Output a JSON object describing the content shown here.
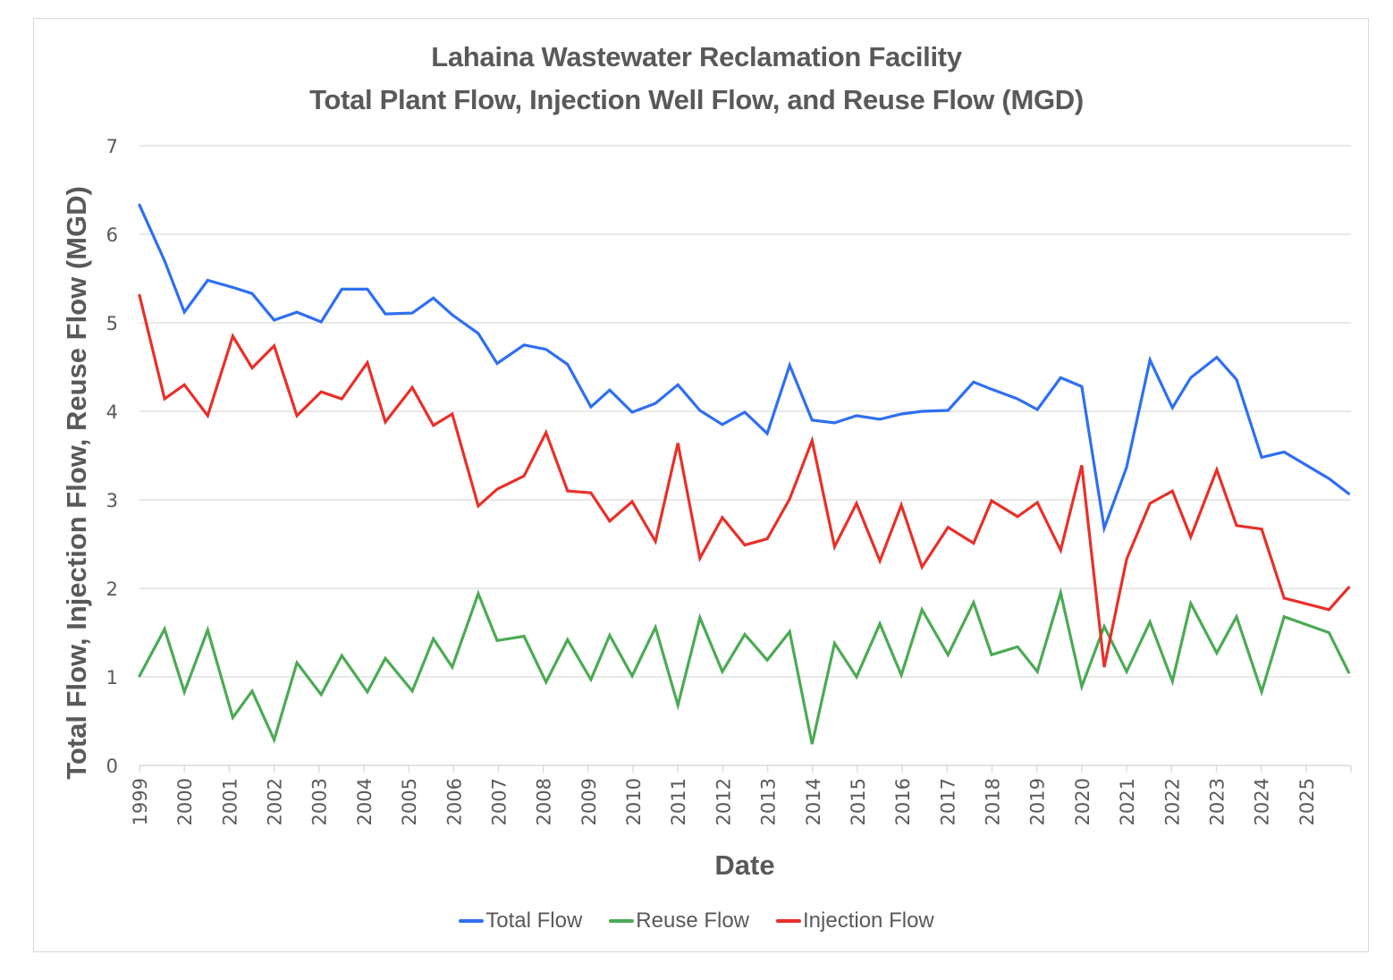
{
  "chart_data": {
    "type": "line",
    "title": [
      "Lahaina Wastewater Reclamation Facility",
      "Total Plant Flow, Injection Well Flow, and Reuse Flow (MGD)"
    ],
    "xlabel": "Date",
    "ylabel": "Total Flow, Injection Flow, Reuse Flow (MGD)",
    "xlim": [
      1999,
      2026
    ],
    "ylim": [
      0,
      7
    ],
    "x_ticks": [
      "1999",
      "2000",
      "2001",
      "2002",
      "2003",
      "2004",
      "2005",
      "2006",
      "2007",
      "2008",
      "2009",
      "2010",
      "2011",
      "2012",
      "2013",
      "2014",
      "2015",
      "2016",
      "2017",
      "2018",
      "2019",
      "2020",
      "2021",
      "2022",
      "2023",
      "2024",
      "2025"
    ],
    "y_ticks": [
      0,
      1,
      2,
      3,
      4,
      5,
      6,
      7
    ],
    "grid": "horizontal",
    "legend_position": "bottom",
    "x": [
      1999.0,
      1999.56,
      2000.0,
      2000.52,
      2001.08,
      2001.51,
      2002.0,
      2002.51,
      2003.05,
      2003.51,
      2004.08,
      2004.48,
      2005.08,
      2005.55,
      2005.97,
      2006.55,
      2006.97,
      2007.57,
      2008.06,
      2008.54,
      2009.06,
      2009.48,
      2009.98,
      2010.5,
      2011.0,
      2011.49,
      2011.99,
      2012.49,
      2012.99,
      2013.49,
      2013.99,
      2014.49,
      2014.98,
      2015.5,
      2015.98,
      2016.44,
      2017.02,
      2017.59,
      2017.99,
      2018.57,
      2019.01,
      2019.53,
      2020.0,
      2020.5,
      2021.0,
      2021.52,
      2022.02,
      2022.43,
      2023.01,
      2023.45,
      2024.01,
      2024.51,
      2025.51,
      2025.95
    ],
    "series": [
      {
        "name": "Total Flow",
        "color": "#2f6ff0",
        "values": [
          6.33,
          5.7,
          5.12,
          5.48,
          5.4,
          5.33,
          5.03,
          5.12,
          5.01,
          5.38,
          5.38,
          5.1,
          5.11,
          5.28,
          5.09,
          4.88,
          4.54,
          4.75,
          4.7,
          4.53,
          4.05,
          4.24,
          3.99,
          4.09,
          4.3,
          4.01,
          3.85,
          3.99,
          3.75,
          4.52,
          3.9,
          3.87,
          3.95,
          3.91,
          3.97,
          4.0,
          4.01,
          4.33,
          4.25,
          4.14,
          4.02,
          4.38,
          4.28,
          2.68,
          3.37,
          4.58,
          4.04,
          4.38,
          4.61,
          4.36,
          3.48,
          3.54,
          3.24,
          3.07
        ]
      },
      {
        "name": "Reuse Flow",
        "color": "#4caa55",
        "values": [
          1.01,
          1.54,
          0.83,
          1.53,
          0.54,
          0.84,
          0.29,
          1.16,
          0.8,
          1.24,
          0.83,
          1.21,
          0.84,
          1.43,
          1.11,
          1.94,
          1.41,
          1.46,
          0.94,
          1.42,
          0.97,
          1.47,
          1.01,
          1.56,
          0.68,
          1.67,
          1.06,
          1.48,
          1.19,
          1.51,
          0.24,
          1.38,
          1.0,
          1.6,
          1.02,
          1.76,
          1.25,
          1.84,
          1.25,
          1.34,
          1.06,
          1.95,
          0.89,
          1.57,
          1.06,
          1.62,
          0.95,
          1.83,
          1.27,
          1.68,
          0.83,
          1.68,
          1.5,
          1.05
        ]
      },
      {
        "name": "Injection Flow",
        "color": "#e8302a",
        "values": [
          5.31,
          4.14,
          4.3,
          3.95,
          4.85,
          4.49,
          4.74,
          3.95,
          4.22,
          4.14,
          4.55,
          3.88,
          4.27,
          3.84,
          3.97,
          2.93,
          3.12,
          3.27,
          3.76,
          3.1,
          3.08,
          2.76,
          2.98,
          2.53,
          3.64,
          2.34,
          2.8,
          2.49,
          2.56,
          3.01,
          3.67,
          2.47,
          2.96,
          2.31,
          2.94,
          2.24,
          2.69,
          2.51,
          2.99,
          2.81,
          2.97,
          2.43,
          3.39,
          1.11,
          2.33,
          2.96,
          3.1,
          2.58,
          3.34,
          2.71,
          2.67,
          1.89,
          1.76,
          2.01
        ]
      }
    ]
  }
}
